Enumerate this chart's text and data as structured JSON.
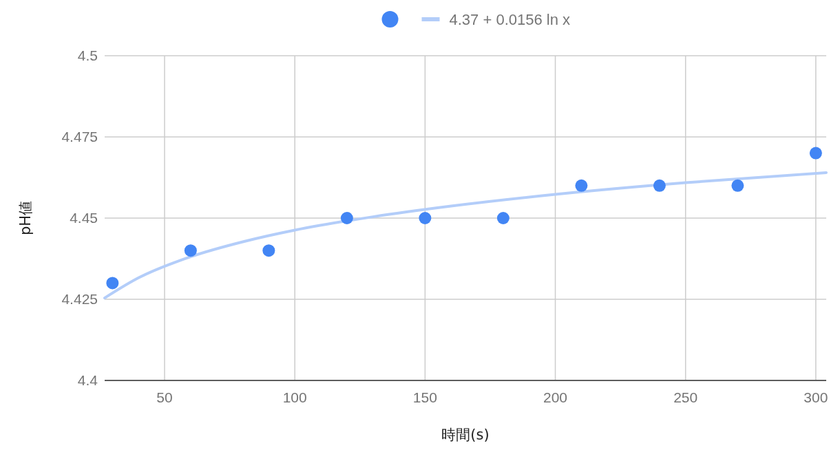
{
  "chart_data": {
    "type": "scatter",
    "xlabel": "時間(s)",
    "ylabel": "pH値",
    "xlim": [
      27,
      304
    ],
    "xticks": [
      50,
      100,
      150,
      200,
      250,
      300
    ],
    "ylim": [
      4.4,
      4.5
    ],
    "yticks": [
      4.4,
      4.425,
      4.45,
      4.475,
      4.5
    ],
    "grid": true,
    "legend": "top",
    "marker": "circle",
    "series": [
      {
        "color": "#4285f4",
        "x": [
          30,
          60,
          90,
          120,
          150,
          180,
          210,
          240,
          270,
          300
        ],
        "values": [
          4.43,
          4.44,
          4.44,
          4.45,
          4.45,
          4.45,
          4.46,
          4.46,
          4.46,
          4.47
        ]
      },
      {
        "type": "line",
        "name": "4.37 + 0.0156 ln x",
        "color": "#b3cdf9",
        "line_style": "solid",
        "marker": "none",
        "x": [
          27,
          40,
          60,
          80,
          100,
          130,
          160,
          200,
          250,
          304
        ],
        "values": [
          4.4254,
          4.4316,
          4.4381,
          4.4427,
          4.4463,
          4.4504,
          4.4537,
          4.4573,
          4.4609,
          4.464
        ]
      }
    ]
  }
}
